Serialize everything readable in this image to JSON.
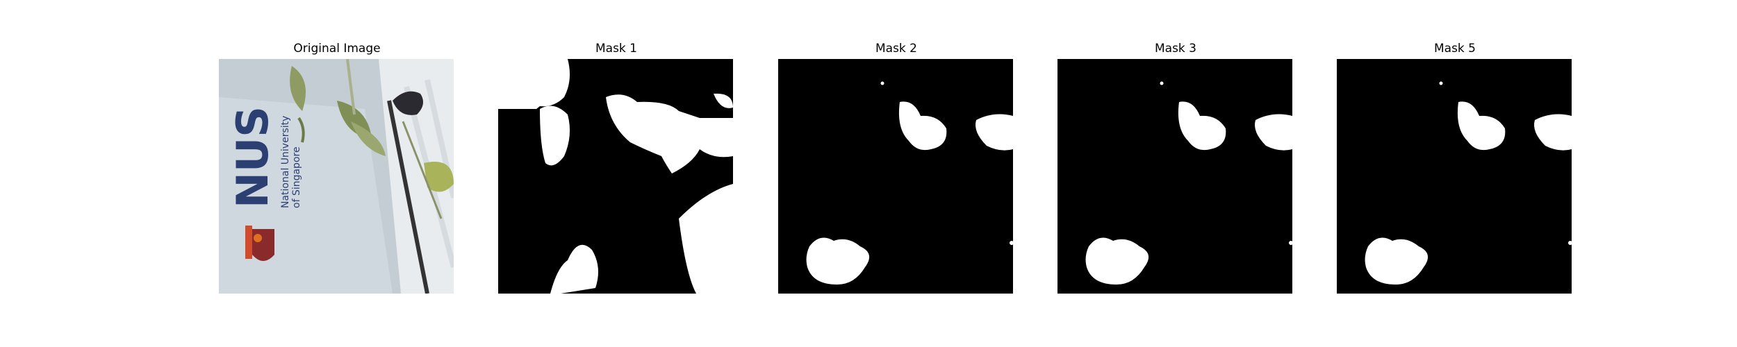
{
  "figure": {
    "panels": [
      {
        "title": "Original Image",
        "kind": "photo"
      },
      {
        "title": "Mask 1",
        "kind": "mask"
      },
      {
        "title": "Mask 2",
        "kind": "mask"
      },
      {
        "title": "Mask 3",
        "kind": "mask"
      },
      {
        "title": "Mask 5",
        "kind": "mask"
      }
    ],
    "photo": {
      "sign_text": {
        "logo": "NUS",
        "line1": "National University",
        "line2": "of Singapore"
      }
    },
    "colors": {
      "mask_background": "#000000",
      "mask_foreground": "#ffffff",
      "sign_blue": "#2b3f73",
      "sign_background": "#c9d2dc",
      "leaf_green": "#7f8f55"
    }
  }
}
